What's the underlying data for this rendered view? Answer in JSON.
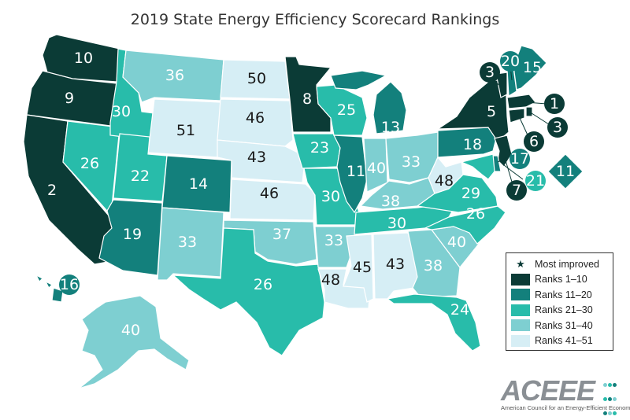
{
  "title": "2019 State Energy Efficiency Scorecard Rankings",
  "colors": {
    "r1_10": "#0b3b36",
    "r11_20": "#13807c",
    "r21_30": "#28bcaa",
    "r31_40": "#7ecfd1",
    "r41_51": "#d6eef5",
    "star_marker": "#0b3b36",
    "text_light": "#ffffff",
    "text_dark": "#1a1a1a"
  },
  "legend": {
    "items": [
      {
        "label": "Most improved",
        "icon": "star-icon"
      },
      {
        "label": "Ranks 1–10",
        "color": "#0b3b36"
      },
      {
        "label": "Ranks 11–20",
        "color": "#13807c"
      },
      {
        "label": "Ranks 21–30",
        "color": "#28bcaa"
      },
      {
        "label": "Ranks 31–40",
        "color": "#7ecfd1"
      },
      {
        "label": "Ranks 41–51",
        "color": "#d6eef5"
      }
    ]
  },
  "logo": {
    "wordmark": "ACEEE",
    "subtitle": "American Council for an Energy-Efficient Economy"
  },
  "states": {
    "WA": {
      "rank": "10"
    },
    "OR": {
      "rank": "9"
    },
    "CA": {
      "rank": "2"
    },
    "NV": {
      "rank": "26"
    },
    "ID": {
      "rank": "30"
    },
    "MT": {
      "rank": "36"
    },
    "WY": {
      "rank": "51"
    },
    "UT": {
      "rank": "22"
    },
    "AZ": {
      "rank": "19"
    },
    "CO": {
      "rank": "14"
    },
    "NM": {
      "rank": "33"
    },
    "ND": {
      "rank": "50"
    },
    "SD": {
      "rank": "46"
    },
    "NE": {
      "rank": "43"
    },
    "KS": {
      "rank": "46"
    },
    "OK": {
      "rank": "37"
    },
    "TX": {
      "rank": "26"
    },
    "MN": {
      "rank": "8"
    },
    "IA": {
      "rank": "23"
    },
    "MO": {
      "rank": "30"
    },
    "AR": {
      "rank": "33"
    },
    "LA": {
      "rank": "48"
    },
    "WI": {
      "rank": "25"
    },
    "IL": {
      "rank": "11"
    },
    "MI": {
      "rank": "13"
    },
    "IN": {
      "rank": "40"
    },
    "OH": {
      "rank": "33"
    },
    "KY": {
      "rank": "38"
    },
    "TN": {
      "rank": "30"
    },
    "MS": {
      "rank": "45"
    },
    "AL": {
      "rank": "43"
    },
    "GA": {
      "rank": "38"
    },
    "FL": {
      "rank": "24"
    },
    "SC": {
      "rank": "40"
    },
    "NC": {
      "rank": "26"
    },
    "VA": {
      "rank": "29"
    },
    "WV": {
      "rank": "48"
    },
    "PA": {
      "rank": "18"
    },
    "NY": {
      "rank": "5"
    },
    "VT": {
      "rank": "3"
    },
    "NH": {
      "rank": "20"
    },
    "ME": {
      "rank": "15"
    },
    "MA": {
      "rank": "1"
    },
    "RI": {
      "rank": "3"
    },
    "CT": {
      "rank": "6"
    },
    "NJ": {
      "rank": "7"
    },
    "DE": {
      "rank": "17"
    },
    "MD": {
      "rank": "21"
    },
    "DC": {
      "rank": "11"
    },
    "AK": {
      "rank": "40"
    },
    "HI": {
      "rank": "16"
    }
  }
}
